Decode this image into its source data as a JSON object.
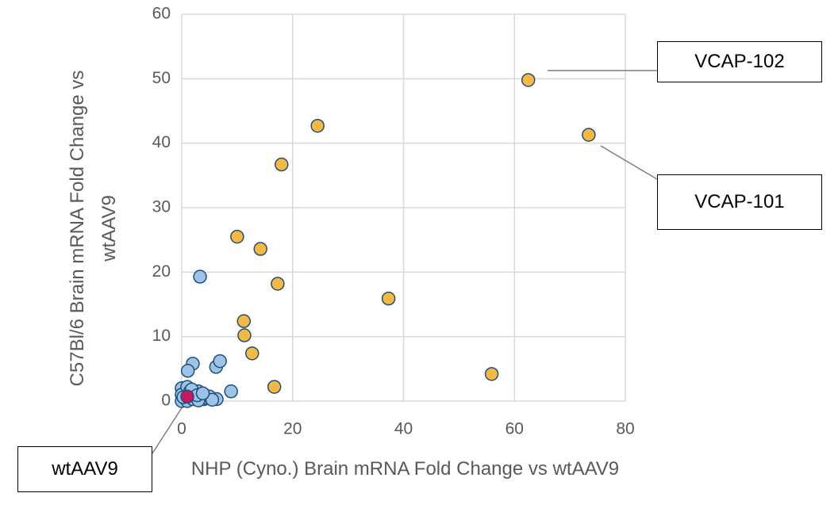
{
  "chart_data": {
    "type": "scatter",
    "x_label": "NHP (Cyno.) Brain mRNA Fold Change vs wtAAV9",
    "y_label": "C57Bl/6 Brain mRNA Fold Change vs wtAAV9",
    "xlim": [
      0,
      80
    ],
    "xticks": [
      0,
      20,
      40,
      60,
      80
    ],
    "ylim": [
      0,
      60
    ],
    "yticks": [
      0,
      10,
      20,
      30,
      40,
      50,
      60
    ],
    "grid": true,
    "annotations": [
      "VCAP-102",
      "VCAP-101",
      "wtAAV9"
    ],
    "series": [
      {
        "color": "#9dc3e6",
        "x": [
          3.3,
          2.0,
          1.1,
          6.2,
          6.9,
          8.9,
          6.3,
          0,
          0,
          0.5,
          1.0,
          1.5,
          2.0,
          2.5,
          3.0,
          3.5,
          4.0,
          4.5,
          5.0,
          0,
          1.0,
          2.0,
          3.0,
          5.5,
          0.3,
          1.8,
          2.8,
          3.8
        ],
        "values": [
          19.3,
          5.8,
          4.7,
          5.3,
          6.2,
          1.5,
          0.3,
          2.0,
          1.0,
          0.3,
          2.2,
          1.5,
          1.0,
          0.5,
          1.5,
          0.8,
          0.3,
          0.5,
          0.7,
          0,
          0,
          0.3,
          0.1,
          0.2,
          0.6,
          1.8,
          0.9,
          1.2
        ]
      },
      {
        "color": "#f5b942",
        "x": [
          62.5,
          73.4,
          24.5,
          18.0,
          10.0,
          14.2,
          17.3,
          37.3,
          11.2,
          11.3,
          12.7,
          16.7,
          55.9
        ],
        "values": [
          49.8,
          41.3,
          42.7,
          36.7,
          25.5,
          23.6,
          18.2,
          15.9,
          12.4,
          10.2,
          7.4,
          2.2,
          4.2
        ]
      },
      {
        "color": "#c8175f",
        "x": [
          1.0
        ],
        "values": [
          0.7
        ]
      }
    ]
  }
}
